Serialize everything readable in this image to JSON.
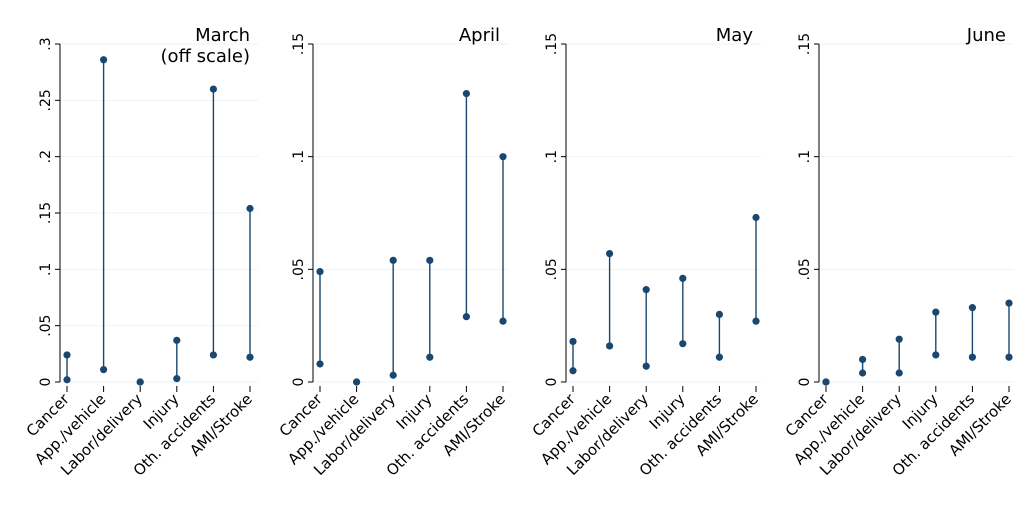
{
  "chart_data": {
    "type": "dropline",
    "categories": [
      "Cancer",
      "App./vehicle",
      "Labor/delivery",
      "Injury",
      "Oth. accidents",
      "AMI/Stroke"
    ],
    "panels": [
      {
        "title_lines": [
          "March",
          "(off scale)"
        ],
        "ylim": [
          0,
          0.3
        ],
        "yticks": [
          0,
          0.05,
          0.1,
          0.15,
          0.2,
          0.25,
          0.3
        ],
        "ytick_labels": [
          "0",
          ".05",
          ".1",
          ".15",
          ".2",
          ".25",
          ".3"
        ],
        "low": [
          0.002,
          0.011,
          0.0,
          0.003,
          0.024,
          0.022
        ],
        "high": [
          0.024,
          0.286,
          0.0,
          0.037,
          0.26,
          0.154
        ]
      },
      {
        "title_lines": [
          "April"
        ],
        "ylim": [
          0,
          0.15
        ],
        "yticks": [
          0,
          0.05,
          0.1,
          0.15
        ],
        "ytick_labels": [
          "0",
          ".05",
          ".1",
          ".15"
        ],
        "low": [
          0.008,
          0.0,
          0.003,
          0.011,
          0.029,
          0.027
        ],
        "high": [
          0.049,
          0.0,
          0.054,
          0.054,
          0.128,
          0.1
        ]
      },
      {
        "title_lines": [
          "May"
        ],
        "ylim": [
          0,
          0.15
        ],
        "yticks": [
          0,
          0.05,
          0.1,
          0.15
        ],
        "ytick_labels": [
          "0",
          ".05",
          ".1",
          ".15"
        ],
        "low": [
          0.005,
          0.016,
          0.007,
          0.017,
          0.011,
          0.027
        ],
        "high": [
          0.018,
          0.057,
          0.041,
          0.046,
          0.03,
          0.073
        ]
      },
      {
        "title_lines": [
          "June"
        ],
        "ylim": [
          0,
          0.15
        ],
        "yticks": [
          0,
          0.05,
          0.1,
          0.15
        ],
        "ytick_labels": [
          "0",
          ".05",
          ".1",
          ".15"
        ],
        "low": [
          0.0,
          0.004,
          0.004,
          0.012,
          0.011,
          0.011
        ],
        "high": [
          0.0,
          0.01,
          0.019,
          0.031,
          0.033,
          0.035
        ]
      }
    ],
    "grid": true,
    "marker_color": "#1a476f"
  }
}
